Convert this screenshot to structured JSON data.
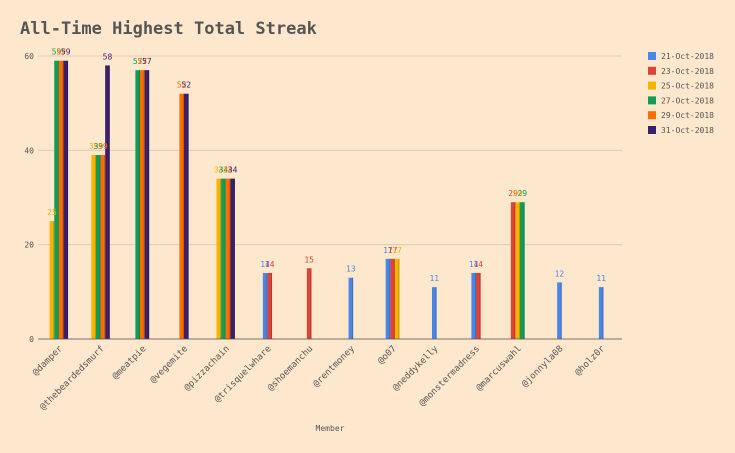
{
  "chart_data": {
    "type": "bar",
    "title": "All-Time Highest Total Streak",
    "xlabel": "Member",
    "ylabel": "",
    "ylim": [
      0,
      60
    ],
    "yticks": [
      0,
      20,
      40,
      60
    ],
    "grid": true,
    "legend_position": "right",
    "categories": [
      "@damper",
      "@thebeardedsmurf",
      "@meatpie",
      "@vegemite",
      "@pizzachain",
      "@trisquelwhare",
      "@shoemanchu",
      "@rentmoney",
      "@o07",
      "@neddykelly",
      "@monstermadness",
      "@marcuswahl",
      "@jonnyla08",
      "@holz0r"
    ],
    "series": [
      {
        "name": "21-Oct-2018",
        "color": "#4a86e8",
        "values": [
          null,
          null,
          null,
          null,
          null,
          14,
          null,
          13,
          17,
          11,
          14,
          null,
          12,
          11
        ]
      },
      {
        "name": "23-Oct-2018",
        "color": "#db4437",
        "values": [
          null,
          null,
          null,
          null,
          null,
          14,
          15,
          null,
          17,
          null,
          14,
          29,
          null,
          null
        ]
      },
      {
        "name": "25-Oct-2018",
        "color": "#f4b400",
        "values": [
          25,
          39,
          null,
          null,
          34,
          null,
          null,
          null,
          17,
          null,
          null,
          29,
          null,
          null
        ]
      },
      {
        "name": "27-Oct-2018",
        "color": "#0f9d58",
        "values": [
          59,
          39,
          57,
          null,
          34,
          null,
          null,
          null,
          null,
          null,
          null,
          29,
          null,
          null
        ]
      },
      {
        "name": "29-Oct-2018",
        "color": "#ff6d00",
        "values": [
          59,
          39,
          57,
          52,
          34,
          null,
          null,
          null,
          null,
          null,
          null,
          null,
          null,
          null
        ]
      },
      {
        "name": "31-Oct-2018",
        "color": "#3a1f6b",
        "values": [
          59,
          58,
          57,
          52,
          34,
          null,
          null,
          null,
          null,
          null,
          null,
          null,
          null,
          null
        ]
      }
    ]
  }
}
